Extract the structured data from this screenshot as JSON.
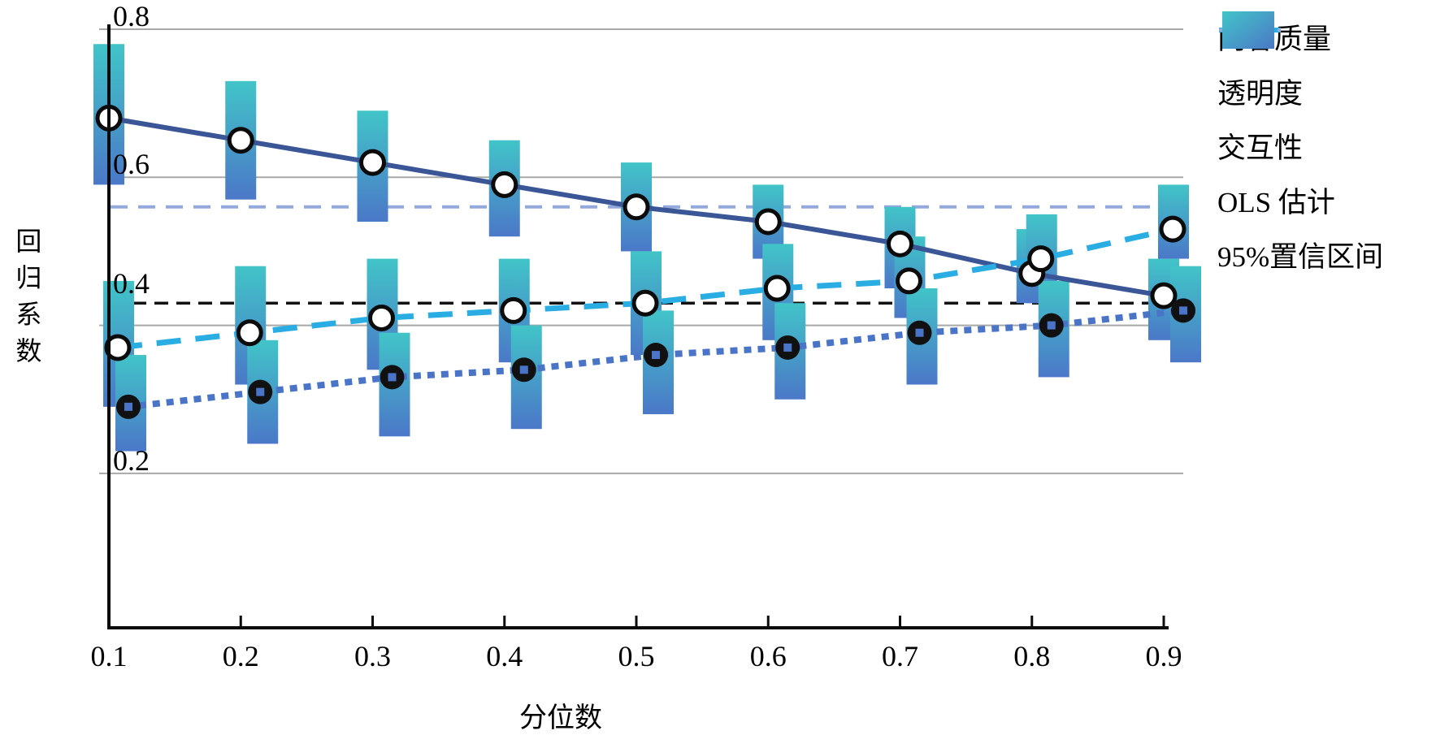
{
  "chart_data": {
    "type": "line",
    "title": "",
    "xlabel": "分位数",
    "ylabel": "回归系数",
    "x": [
      0.1,
      0.2,
      0.3,
      0.4,
      0.5,
      0.6,
      0.7,
      0.8,
      0.9
    ],
    "x_tick_labels": [
      "0.1",
      "0.2",
      "0.3",
      "0.4",
      "0.5",
      "0.6",
      "0.7",
      "0.8",
      "0.9"
    ],
    "y_ticks": [
      0.8,
      0.6,
      0.4,
      0.2
    ],
    "y_tick_labels": [
      "0.8",
      "0.6",
      "0.4",
      "0.2"
    ],
    "ylim": [
      0,
      0.8
    ],
    "grid": "horizontal-gray",
    "legend_position": "right",
    "series": [
      {
        "key": "content-quality",
        "name": "内容质量",
        "style": "solid",
        "color": "#3A5697",
        "marker": "open-circle-black-ring",
        "values": [
          0.68,
          0.65,
          0.62,
          0.59,
          0.56,
          0.54,
          0.51,
          0.47,
          0.44
        ],
        "ci": [
          [
            0.59,
            0.78
          ],
          [
            0.57,
            0.73
          ],
          [
            0.54,
            0.69
          ],
          [
            0.52,
            0.65
          ],
          [
            0.5,
            0.62
          ],
          [
            0.49,
            0.59
          ],
          [
            0.45,
            0.56
          ],
          [
            0.43,
            0.53
          ],
          [
            0.38,
            0.49
          ]
        ]
      },
      {
        "key": "transparency",
        "name": "透明度",
        "style": "dashed",
        "color": "#29ADE3",
        "marker": "open-circle-black-ring",
        "values": [
          0.37,
          0.39,
          0.41,
          0.42,
          0.43,
          0.45,
          0.46,
          0.49,
          0.53
        ],
        "ci": [
          [
            0.29,
            0.46
          ],
          [
            0.32,
            0.48
          ],
          [
            0.34,
            0.49
          ],
          [
            0.35,
            0.49
          ],
          [
            0.36,
            0.5
          ],
          [
            0.38,
            0.51
          ],
          [
            0.41,
            0.52
          ],
          [
            0.43,
            0.55
          ],
          [
            0.49,
            0.59
          ]
        ]
      },
      {
        "key": "interactivity",
        "name": "交互性",
        "style": "dotted",
        "color": "#4A74C8",
        "marker": "filled-black-circle",
        "values": [
          0.29,
          0.31,
          0.33,
          0.34,
          0.36,
          0.37,
          0.39,
          0.4,
          0.42
        ],
        "ci": [
          [
            0.23,
            0.36
          ],
          [
            0.24,
            0.38
          ],
          [
            0.25,
            0.39
          ],
          [
            0.26,
            0.4
          ],
          [
            0.28,
            0.42
          ],
          [
            0.3,
            0.43
          ],
          [
            0.32,
            0.45
          ],
          [
            0.33,
            0.46
          ],
          [
            0.35,
            0.48
          ]
        ]
      }
    ],
    "reference_lines": [
      {
        "label": "OLS 估计",
        "value": 0.56,
        "color": "#93A9DC",
        "style": "dashed"
      },
      {
        "label": "",
        "value": 0.43,
        "color": "#111111",
        "style": "dashed"
      }
    ],
    "ci_band_label": "95%置信区间",
    "ci_gradient_top": "#41C4C8",
    "ci_gradient_bottom": "#4B78C8"
  },
  "legend": {
    "items": [
      {
        "label": "内容质量",
        "glyph": "line-donut",
        "color": "#3A5697",
        "fill": "#3054A0"
      },
      {
        "label": "透明度",
        "glyph": "dash-circle",
        "color": "#29ADE3"
      },
      {
        "label": "交互性",
        "glyph": "dot-circle",
        "color": "#111111"
      },
      {
        "label": "OLS 估计",
        "glyph": "dash",
        "color": "#93A9DC"
      },
      {
        "label": "95%置信区间",
        "glyph": "swatch",
        "gradient_top": "#41C4C8",
        "gradient_bottom": "#4B78C6"
      }
    ]
  },
  "axes": {
    "x_title": "分位数",
    "y_title": "回归系数"
  }
}
